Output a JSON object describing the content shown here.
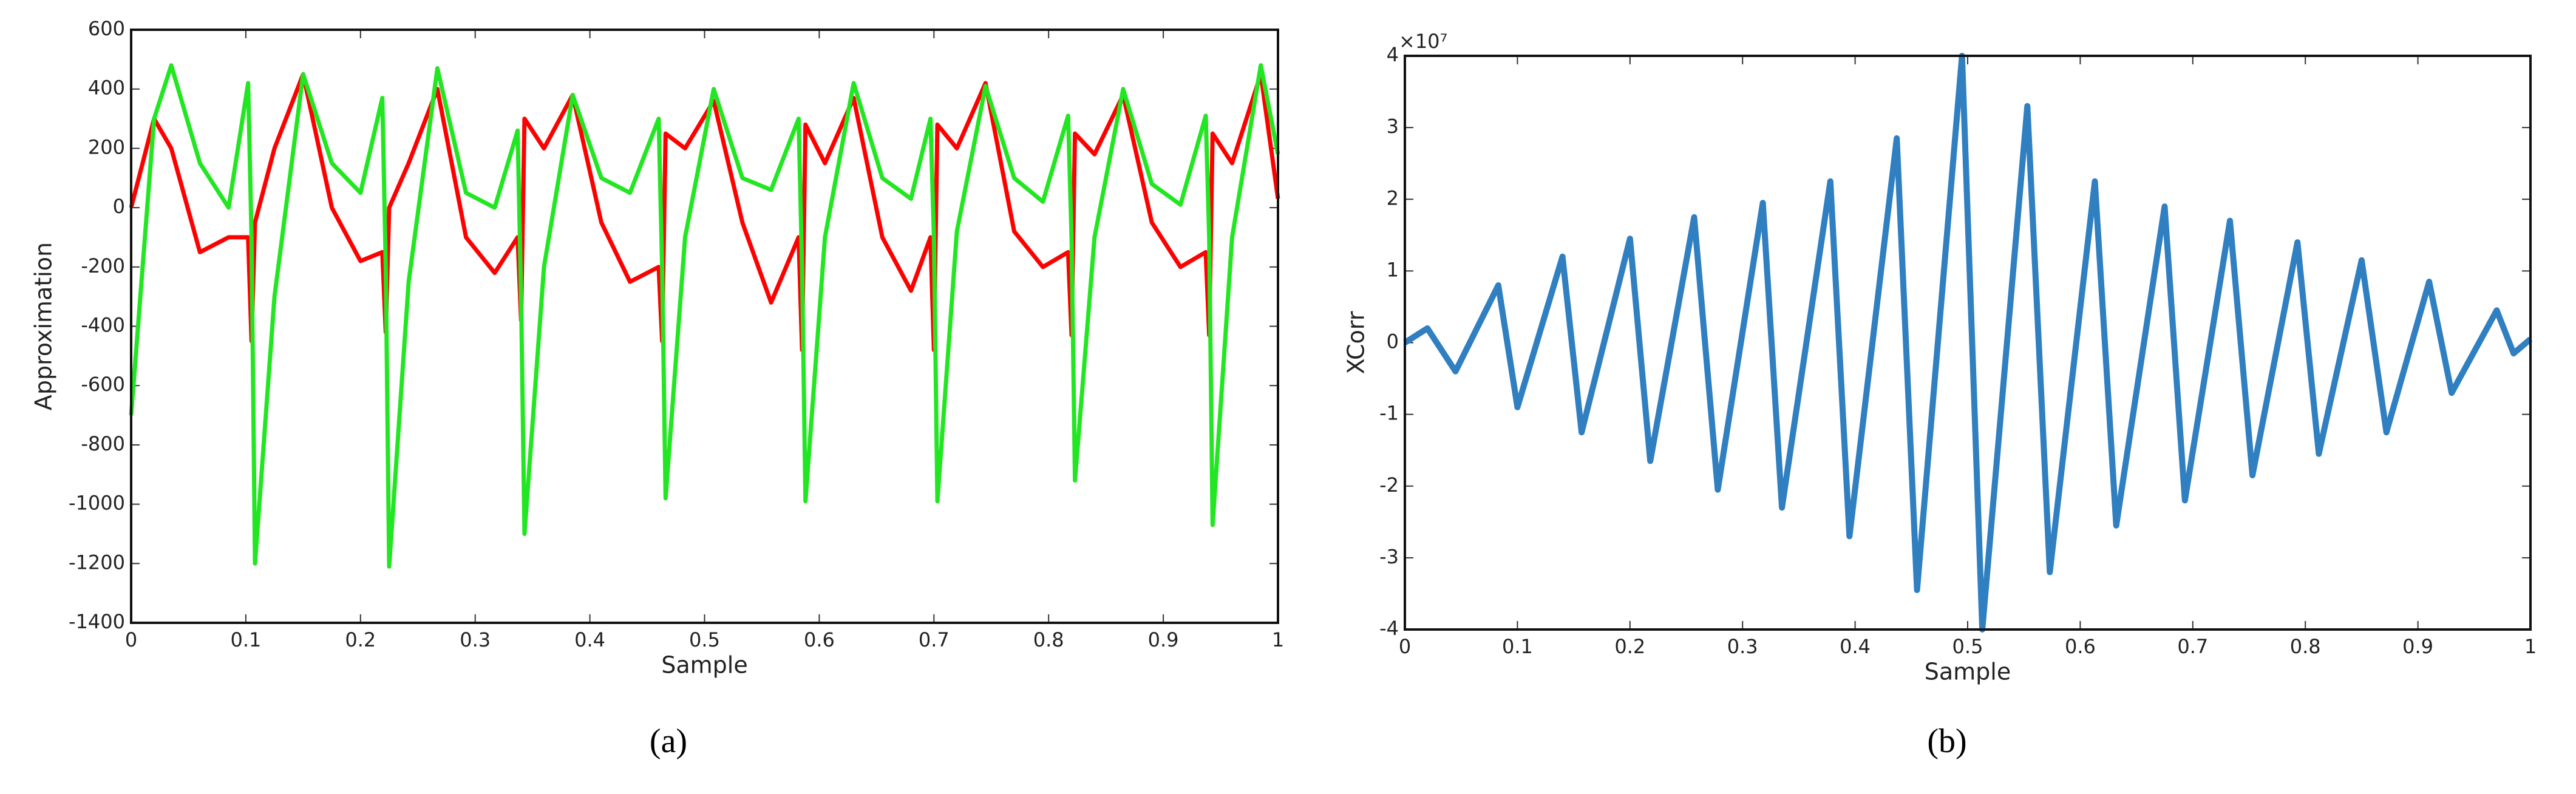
{
  "chart_data": [
    {
      "type": "line",
      "caption": "(a)",
      "xlabel": "Sample",
      "ylabel": "Approximation",
      "xlim": [
        0,
        1
      ],
      "xticks": [
        0,
        0.1,
        0.2,
        0.3,
        0.4,
        0.5,
        0.6,
        0.7,
        0.8,
        0.9,
        1
      ],
      "ylim": [
        -1400,
        600
      ],
      "yticks": [
        -1400,
        -1200,
        -1000,
        -800,
        -600,
        -400,
        -200,
        0,
        200,
        400,
        600
      ],
      "x": [
        0,
        0.02,
        0.035,
        0.06,
        0.085,
        0.102,
        0.105,
        0.108,
        0.125,
        0.15,
        0.175,
        0.2,
        0.219,
        0.222,
        0.225,
        0.242,
        0.267,
        0.292,
        0.317,
        0.337,
        0.34,
        0.343,
        0.36,
        0.385,
        0.41,
        0.435,
        0.46,
        0.463,
        0.466,
        0.483,
        0.508,
        0.533,
        0.558,
        0.582,
        0.585,
        0.588,
        0.605,
        0.63,
        0.655,
        0.68,
        0.697,
        0.7,
        0.703,
        0.72,
        0.745,
        0.77,
        0.795,
        0.817,
        0.82,
        0.823,
        0.84,
        0.865,
        0.89,
        0.915,
        0.937,
        0.94,
        0.943,
        0.96,
        0.985,
        1
      ],
      "series": [
        {
          "color": "#ff0000",
          "values": [
            0,
            300,
            200,
            -150,
            -100,
            -100,
            -450,
            -50,
            200,
            450,
            0,
            -180,
            -150,
            -420,
            0,
            150,
            400,
            -100,
            -220,
            -100,
            -380,
            300,
            200,
            380,
            -50,
            -250,
            -200,
            -450,
            250,
            200,
            360,
            -50,
            -320,
            -100,
            -480,
            280,
            150,
            370,
            -100,
            -280,
            -100,
            -480,
            280,
            200,
            420,
            -80,
            -200,
            -150,
            -430,
            250,
            180,
            380,
            -50,
            -200,
            -150,
            -430,
            250,
            150,
            450,
            30
          ]
        },
        {
          "color": "#22e622",
          "values": [
            -700,
            300,
            480,
            150,
            0,
            420,
            -100,
            -1200,
            -300,
            450,
            150,
            50,
            370,
            -200,
            -1210,
            -250,
            470,
            50,
            0,
            260,
            -300,
            -1100,
            -200,
            380,
            100,
            50,
            300,
            -200,
            -980,
            -100,
            400,
            100,
            60,
            300,
            -200,
            -990,
            -100,
            420,
            100,
            30,
            300,
            -100,
            -990,
            -80,
            410,
            100,
            20,
            310,
            -100,
            -920,
            -100,
            400,
            80,
            10,
            310,
            -100,
            -1070,
            -100,
            480,
            180
          ]
        }
      ]
    },
    {
      "type": "line",
      "caption": "(b)",
      "xlabel": "Sample",
      "ylabel": "XCorr",
      "exponent_label": "×10⁷",
      "xlim": [
        0,
        1
      ],
      "xticks": [
        0,
        0.1,
        0.2,
        0.3,
        0.4,
        0.5,
        0.6,
        0.7,
        0.8,
        0.9,
        1
      ],
      "ylim": [
        -4,
        4
      ],
      "yticks": [
        -4,
        -3,
        -2,
        -1,
        0,
        1,
        2,
        3,
        4
      ],
      "x": [
        0,
        0.02,
        0.045,
        0.083,
        0.1,
        0.14,
        0.157,
        0.2,
        0.218,
        0.257,
        0.278,
        0.318,
        0.335,
        0.378,
        0.395,
        0.437,
        0.455,
        0.495,
        0.513,
        0.553,
        0.573,
        0.613,
        0.632,
        0.675,
        0.693,
        0.733,
        0.753,
        0.793,
        0.812,
        0.85,
        0.872,
        0.91,
        0.93,
        0.97,
        0.985,
        1
      ],
      "series": [
        {
          "color": "#2f7fc1",
          "values": [
            0,
            0.2,
            -0.4,
            0.8,
            -0.9,
            1.2,
            -1.25,
            1.45,
            -1.65,
            1.75,
            -2.05,
            1.95,
            -2.3,
            2.25,
            -2.7,
            2.85,
            -3.45,
            4,
            -4,
            3.3,
            -3.2,
            2.25,
            -2.55,
            1.9,
            -2.2,
            1.7,
            -1.85,
            1.4,
            -1.55,
            1.15,
            -1.25,
            0.85,
            -0.7,
            0.45,
            -0.15,
            0.05
          ]
        }
      ]
    }
  ]
}
